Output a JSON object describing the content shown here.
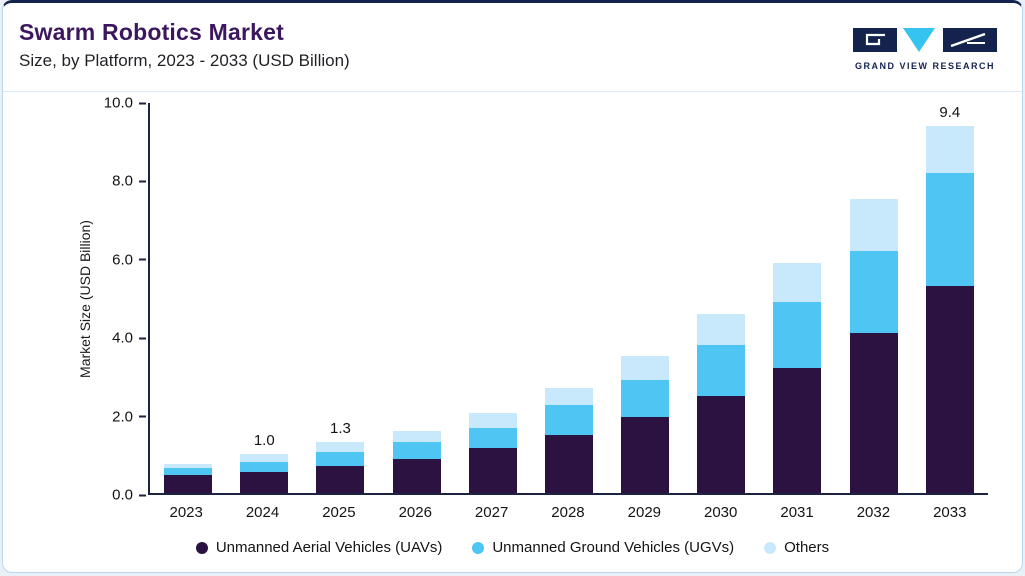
{
  "page": {
    "title": "Swarm Robotics Market",
    "subtitle": "Size, by Platform, 2023 - 2033 (USD Billion)"
  },
  "logo": {
    "brand": "GRAND VIEW RESEARCH",
    "navy": "#13234e",
    "cyan": "#35c4f0"
  },
  "chart_data": {
    "type": "bar",
    "stacked": true,
    "title": "Swarm Robotics Market Size, by Platform, 2023 - 2033 (USD Billion)",
    "xlabel": "",
    "ylabel": "Market Size (USD Billion)",
    "ylim": [
      0,
      10
    ],
    "yticks": [
      "0.0",
      "2.0",
      "4.0",
      "6.0",
      "8.0",
      "10.0"
    ],
    "grid": false,
    "legend_position": "bottom",
    "categories": [
      "2023",
      "2024",
      "2025",
      "2026",
      "2027",
      "2028",
      "2029",
      "2030",
      "2031",
      "2032",
      "2033"
    ],
    "series": [
      {
        "name": "Unmanned Aerial Vehicles (UAVs)",
        "slug": "uavs",
        "color": "#2b1240",
        "values": [
          0.45,
          0.55,
          0.7,
          0.88,
          1.15,
          1.5,
          1.95,
          2.5,
          3.2,
          4.1,
          5.3
        ]
      },
      {
        "name": "Unmanned Ground Vehicles (UGVs)",
        "slug": "ugvs",
        "color": "#4ec5f2",
        "values": [
          0.18,
          0.25,
          0.35,
          0.44,
          0.52,
          0.75,
          0.95,
          1.3,
          1.7,
          2.1,
          2.9
        ]
      },
      {
        "name": "Others",
        "slug": "others",
        "color": "#c8e9fb",
        "values": [
          0.12,
          0.2,
          0.25,
          0.28,
          0.38,
          0.45,
          0.62,
          0.8,
          1.0,
          1.35,
          1.2
        ]
      }
    ],
    "totals_labels": {
      "2024": "1.0",
      "2025": "1.3",
      "2033": "9.4"
    }
  }
}
